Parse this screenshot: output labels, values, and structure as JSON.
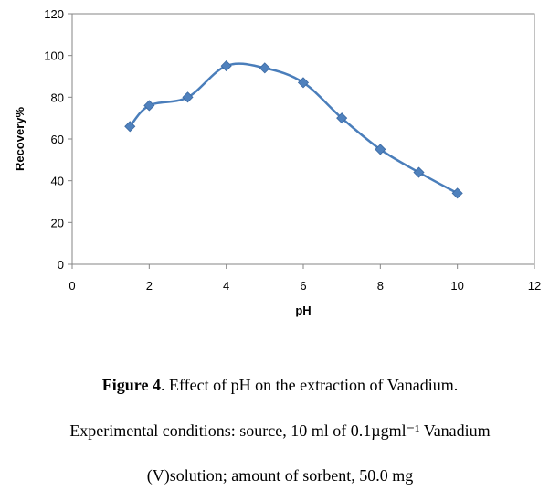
{
  "chart_data": {
    "type": "line",
    "xlabel": "pH",
    "ylabel": "Recovery%",
    "xlim": [
      0,
      12
    ],
    "ylim": [
      0,
      120
    ],
    "xticks": [
      0,
      2,
      4,
      6,
      8,
      10,
      12
    ],
    "yticks": [
      0,
      20,
      40,
      60,
      80,
      100,
      120
    ],
    "grid": false,
    "line_color": "#4a7ebb",
    "marker_color": "#4f81bd",
    "marker": "diamond",
    "smooth": true,
    "series": [
      {
        "x": [
          1.5,
          2,
          3,
          4,
          5,
          6,
          7,
          8,
          9,
          10
        ],
        "y": [
          66,
          76,
          80,
          95,
          94,
          87,
          70,
          55,
          44,
          34
        ]
      }
    ]
  },
  "caption": {
    "figure_label": "Figure 4",
    "title_rest": ". Effect of pH on the extraction of Vanadium.",
    "line2": "Experimental conditions: source, 10 ml of 0.1µgml⁻¹ Vanadium",
    "line3": "(V)solution; amount of sorbent, 50.0 mg"
  }
}
